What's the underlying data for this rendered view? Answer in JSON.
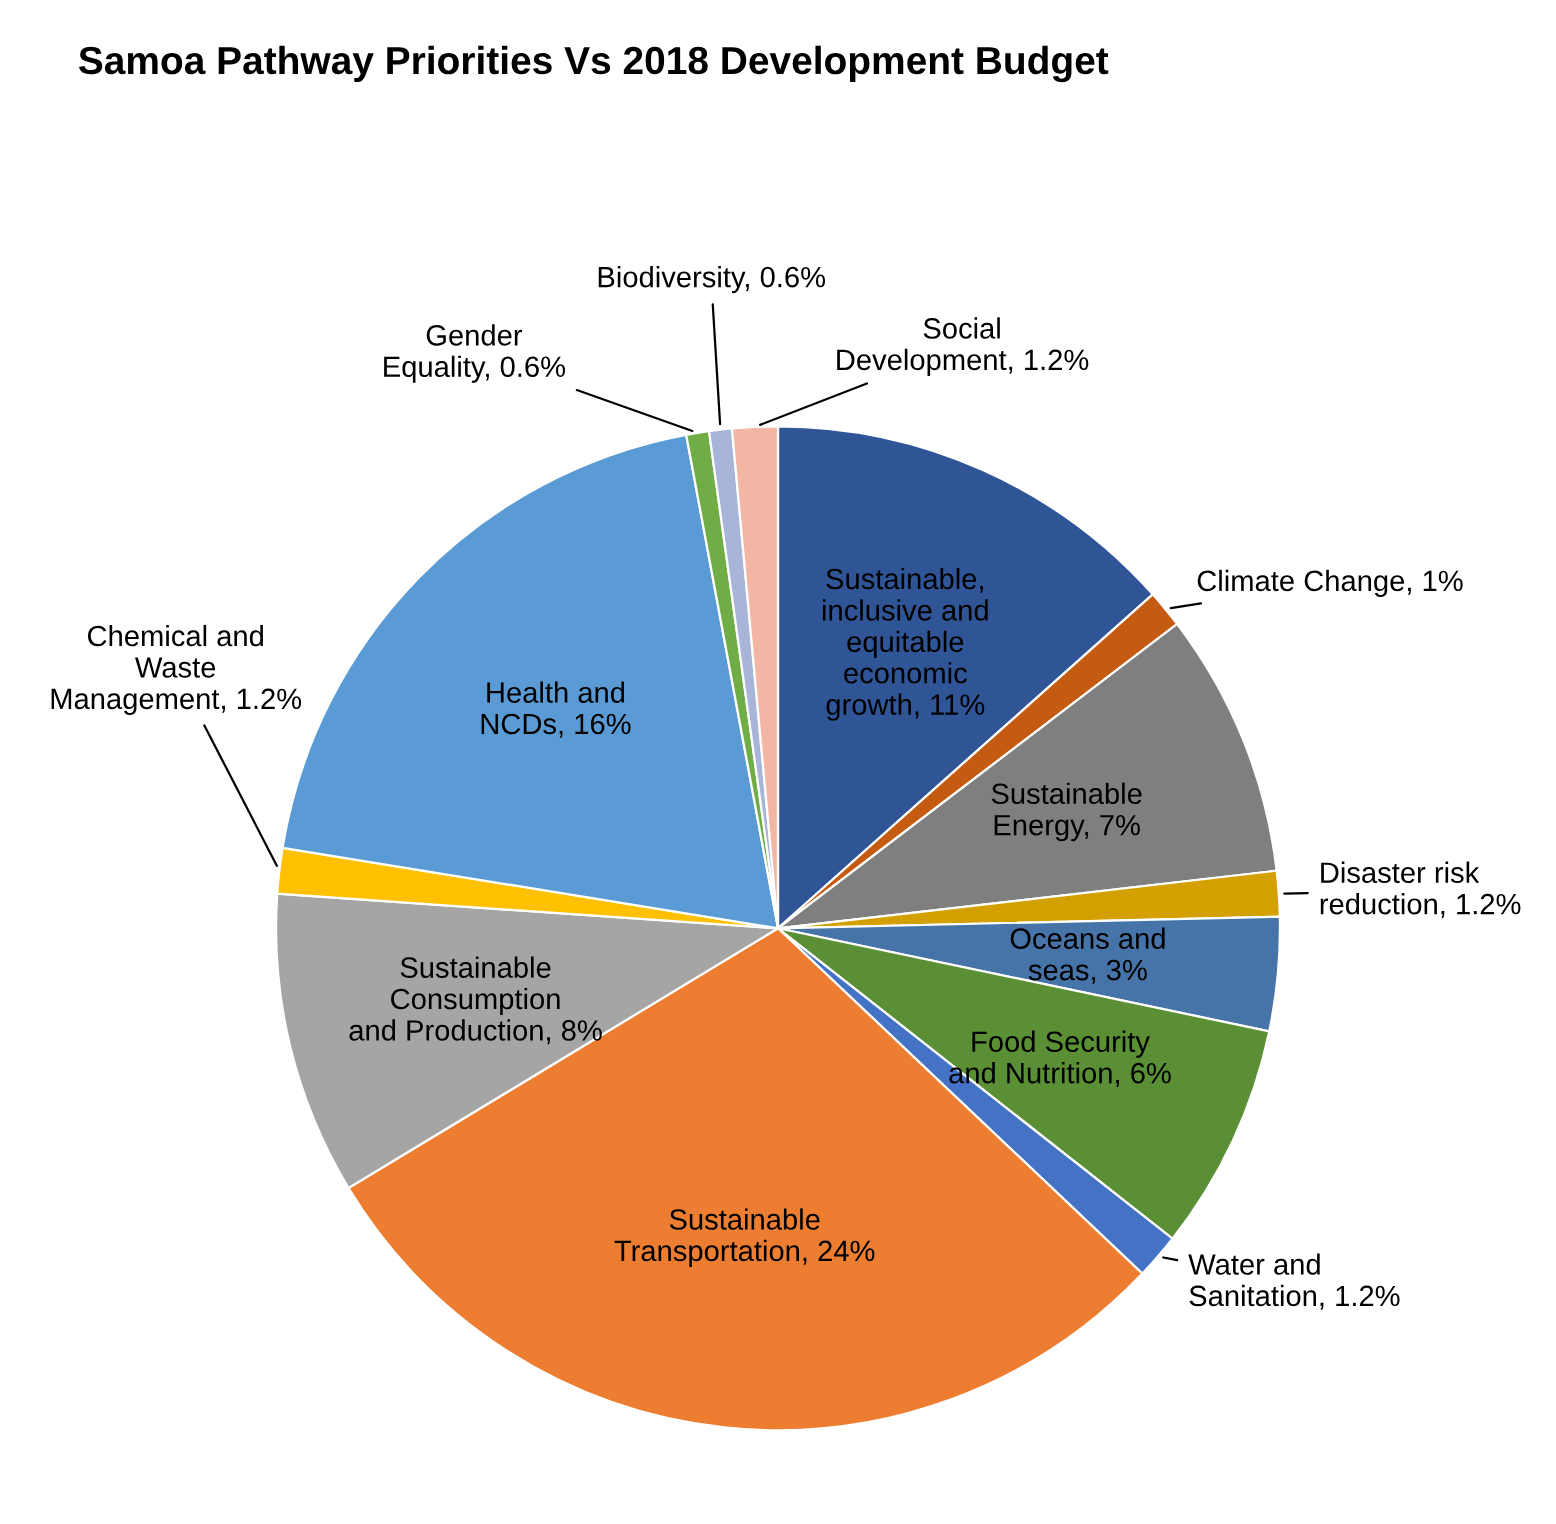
{
  "chart_data": {
    "type": "pie",
    "title": "Samoa Pathway Priorities Vs 2018 Development Budget",
    "categories": [
      "Sustainable, inclusive and equitable economic growth",
      "Climate Change",
      "Sustainable Energy",
      "Disaster risk reduction",
      "Oceans and seas",
      "Food Security and Nutrition",
      "Water and Sanitation",
      "Sustainable Transportation",
      "Sustainable Consumption and Production",
      "Chemical and Waste Management",
      "Health and NCDs",
      "Gender Equality",
      "Biodiversity",
      "Social Development"
    ],
    "values": [
      11,
      1,
      7,
      1.2,
      3,
      6,
      1.2,
      24,
      8,
      1.2,
      16,
      0.6,
      0.6,
      1.2
    ],
    "value_labels": [
      "11%",
      "1%",
      "7%",
      "1.2%",
      "3%",
      "6%",
      "1.2%",
      "24%",
      "8%",
      "1.2%",
      "16%",
      "0.6%",
      "0.6%",
      "1.2%"
    ],
    "colors": [
      "#2f5597",
      "#c55a11",
      "#7f7f7f",
      "#d4a000",
      "#4674a8",
      "#5a8f36",
      "#4472c4",
      "#ed7d31",
      "#a5a5a5",
      "#ffc000",
      "#5b9bd5",
      "#70ad47",
      "#a9b4d9",
      "#f4b6a4"
    ]
  }
}
